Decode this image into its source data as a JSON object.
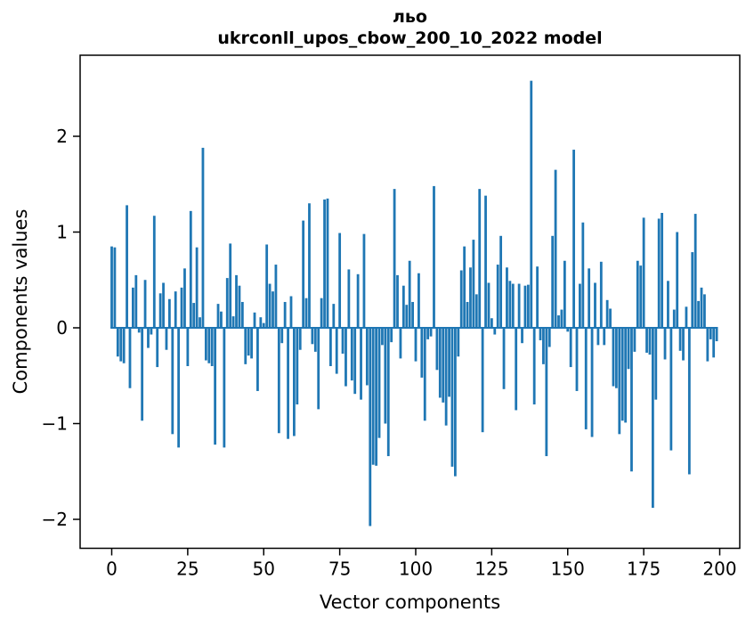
{
  "figure": {
    "title_line1": "льо",
    "title_line2": "ukrconll_upos_cbow_200_10_2022 model"
  },
  "chart_data": {
    "type": "bar",
    "title": "льо\nukrconll_upos_cbow_200_10_2022 model",
    "xlabel": "Vector components",
    "ylabel": "Components values",
    "bar_color": "#1f77b4",
    "axis_color": "#000000",
    "grid": false,
    "legend": null,
    "xlim": [
      -10.5,
      210
    ],
    "ylim": [
      -2.3,
      2.85
    ],
    "x_ticks": [
      0,
      25,
      50,
      75,
      100,
      125,
      150,
      175,
      200
    ],
    "y_ticks": [
      -2,
      -1,
      0,
      1,
      2
    ],
    "y_tick_labels": [
      "−2",
      "−1",
      "0",
      "1",
      "2"
    ],
    "x": "component index 0..199",
    "values": [
      0.85,
      0.84,
      -0.3,
      -0.35,
      -0.37,
      1.28,
      -0.63,
      0.42,
      0.55,
      -0.05,
      -0.97,
      0.5,
      -0.21,
      -0.07,
      1.17,
      -0.41,
      0.36,
      0.47,
      -0.23,
      0.3,
      -1.11,
      0.38,
      -1.25,
      0.42,
      0.62,
      -0.4,
      1.22,
      0.26,
      0.84,
      0.11,
      1.88,
      -0.34,
      -0.37,
      -0.4,
      -1.22,
      0.25,
      0.17,
      -1.25,
      0.52,
      0.88,
      0.12,
      0.55,
      0.44,
      0.27,
      -0.38,
      -0.29,
      -0.32,
      0.16,
      -0.66,
      0.11,
      0.05,
      0.87,
      0.46,
      0.38,
      0.66,
      -1.1,
      -0.16,
      0.27,
      -1.16,
      0.33,
      -1.13,
      -0.8,
      -0.23,
      1.12,
      0.31,
      1.3,
      -0.17,
      -0.25,
      -0.85,
      0.31,
      1.34,
      1.35,
      -0.4,
      0.25,
      -0.48,
      0.99,
      -0.27,
      -0.61,
      0.61,
      -0.55,
      -0.69,
      0.56,
      -0.75,
      0.98,
      -0.6,
      -2.07,
      -1.43,
      -1.44,
      -1.15,
      -0.18,
      -1.0,
      -1.34,
      -0.15,
      1.45,
      0.55,
      -0.32,
      0.44,
      0.24,
      0.7,
      0.27,
      -0.35,
      0.57,
      -0.52,
      -0.97,
      -0.12,
      -0.09,
      1.48,
      -0.44,
      -0.73,
      -0.78,
      -1.02,
      -0.72,
      -1.45,
      -1.55,
      -0.3,
      0.6,
      0.85,
      0.27,
      0.63,
      0.92,
      0.35,
      1.45,
      -1.09,
      1.38,
      0.47,
      0.1,
      -0.07,
      0.66,
      0.96,
      -0.64,
      0.63,
      0.49,
      0.46,
      -0.86,
      0.46,
      -0.16,
      0.44,
      0.45,
      2.58,
      -0.8,
      0.64,
      -0.13,
      -0.38,
      -1.34,
      -0.2,
      0.96,
      1.65,
      0.13,
      0.19,
      0.7,
      -0.04,
      -0.41,
      1.86,
      -0.66,
      0.46,
      1.1,
      -1.06,
      0.62,
      -1.14,
      0.47,
      -0.18,
      0.69,
      -0.18,
      0.29,
      0.2,
      -0.61,
      -0.63,
      -1.11,
      -0.97,
      -0.99,
      -0.43,
      -1.5,
      -0.25,
      0.7,
      0.65,
      1.15,
      -0.26,
      -0.28,
      -1.88,
      -0.75,
      1.14,
      1.2,
      -0.33,
      0.49,
      -1.28,
      0.19,
      1.0,
      -0.24,
      -0.34,
      0.22,
      -1.53,
      0.79,
      1.19,
      0.28,
      0.42,
      0.35,
      -0.35,
      -0.12,
      -0.31,
      -0.14
    ]
  }
}
